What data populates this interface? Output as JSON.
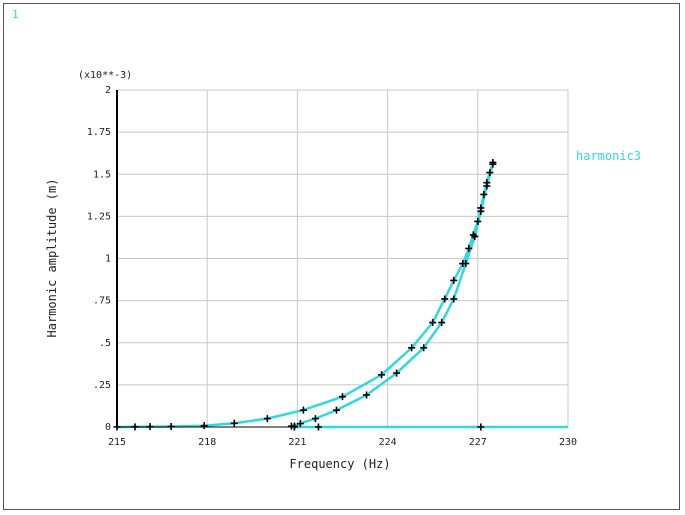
{
  "window": {
    "corner_label": "1"
  },
  "chart_data": {
    "type": "line",
    "title": "",
    "xlabel": "Frequency (Hz)",
    "ylabel": "Harmonic amplitude (m)",
    "y_multiplier": "(x10**-3)",
    "xlim": [
      215,
      230
    ],
    "ylim": [
      0,
      2
    ],
    "x_ticks": [
      215,
      218,
      221,
      224,
      227,
      230
    ],
    "x_tick_labels": [
      "215",
      "218",
      "221",
      "224",
      "227",
      "230"
    ],
    "y_ticks": [
      0,
      0.25,
      0.5,
      0.75,
      1,
      1.25,
      1.5,
      1.75,
      2
    ],
    "y_tick_labels": [
      "0",
      ".25",
      ".5",
      ".75",
      "1",
      "1.25",
      "1.5",
      "1.75",
      "2"
    ],
    "grid": true,
    "legend": "right",
    "colors": {
      "curve": "#30d8e0",
      "marker": "#000000",
      "grid": "#c8c8c8",
      "axis": "#000000"
    },
    "series": [
      {
        "name": "harmonic3",
        "upper_branch": {
          "x": [
            215,
            215.6,
            216.1,
            216.8,
            217.9,
            218.9,
            220.0,
            221.2,
            222.5,
            223.8,
            224.8,
            225.5,
            225.9,
            226.2,
            226.5,
            226.7,
            226.85,
            227.0,
            227.1,
            227.2,
            227.3,
            227.4,
            227.5
          ],
          "y": [
            0,
            0.001,
            0.002,
            0.003,
            0.008,
            0.022,
            0.05,
            0.1,
            0.18,
            0.31,
            0.47,
            0.62,
            0.76,
            0.87,
            0.97,
            1.06,
            1.14,
            1.22,
            1.3,
            1.38,
            1.45,
            1.51,
            1.57
          ]
        },
        "lower_branch": {
          "x": [
            220.8,
            221.6,
            222.3,
            223.3,
            224.3,
            225.2,
            225.8,
            226.2,
            226.6,
            226.9,
            227.1,
            227.3,
            227.5
          ],
          "y": [
            0.005,
            0.05,
            0.1,
            0.19,
            0.32,
            0.47,
            0.62,
            0.76,
            0.97,
            1.13,
            1.28,
            1.43,
            1.56
          ]
        },
        "low_branch": {
          "x": [
            220.9,
            221.7,
            227.1,
            230
          ],
          "y": [
            0,
            0,
            0,
            0
          ]
        },
        "turning_branch": {
          "x": [
            220.9,
            221.1
          ],
          "y": [
            0.005,
            0.02
          ]
        }
      }
    ]
  }
}
